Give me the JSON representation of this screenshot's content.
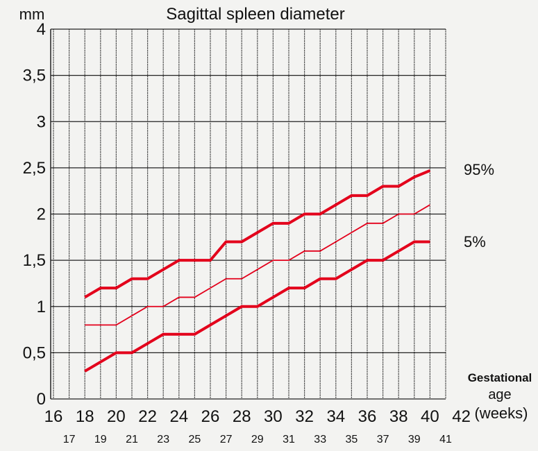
{
  "chart_data": {
    "type": "line",
    "title": "Sagittal spleen diameter",
    "ylabel": "mm",
    "xlabel": [
      "Gestational",
      "age",
      "(weeks)"
    ],
    "ylim": [
      0,
      4
    ],
    "xlim": [
      16,
      41
    ],
    "grid": true,
    "yticks": [
      {
        "v": 0,
        "label": "0"
      },
      {
        "v": 0.5,
        "label": "0,5"
      },
      {
        "v": 1,
        "label": "1"
      },
      {
        "v": 1.5,
        "label": "1,5"
      },
      {
        "v": 2,
        "label": "2"
      },
      {
        "v": 2.5,
        "label": "2,5"
      },
      {
        "v": 3,
        "label": "3"
      },
      {
        "v": 3.5,
        "label": "3,5"
      },
      {
        "v": 4,
        "label": "4"
      }
    ],
    "xticks_even": [
      "16",
      "18",
      "20",
      "22",
      "24",
      "26",
      "28",
      "30",
      "32",
      "34",
      "36",
      "38",
      "40",
      "42"
    ],
    "xticks_odd": [
      "17",
      "19",
      "21",
      "23",
      "25",
      "27",
      "29",
      "31",
      "33",
      "35",
      "37",
      "39",
      "41"
    ],
    "x": [
      18,
      19,
      20,
      21,
      22,
      23,
      24,
      25,
      26,
      27,
      28,
      29,
      30,
      31,
      32,
      33,
      34,
      35,
      36,
      37,
      38,
      39,
      40
    ],
    "series": [
      {
        "name": "95%",
        "style": "thick",
        "values": [
          1.1,
          1.2,
          1.2,
          1.3,
          1.3,
          1.4,
          1.5,
          1.5,
          1.5,
          1.7,
          1.7,
          1.8,
          1.9,
          1.9,
          2.0,
          2.0,
          2.1,
          2.2,
          2.2,
          2.3,
          2.3,
          2.4,
          2.47
        ]
      },
      {
        "name": "",
        "style": "thin",
        "values": [
          0.8,
          0.8,
          0.8,
          0.9,
          1.0,
          1.0,
          1.1,
          1.1,
          1.2,
          1.3,
          1.3,
          1.4,
          1.5,
          1.5,
          1.6,
          1.6,
          1.7,
          1.8,
          1.9,
          1.9,
          2.0,
          2.0,
          2.1
        ]
      },
      {
        "name": "5%",
        "style": "thick",
        "values": [
          0.3,
          0.4,
          0.5,
          0.5,
          0.6,
          0.7,
          0.7,
          0.7,
          0.8,
          0.9,
          1.0,
          1.0,
          1.1,
          1.2,
          1.2,
          1.3,
          1.3,
          1.4,
          1.5,
          1.5,
          1.6,
          1.7,
          1.7
        ]
      }
    ],
    "series_color": "#e3001b"
  }
}
